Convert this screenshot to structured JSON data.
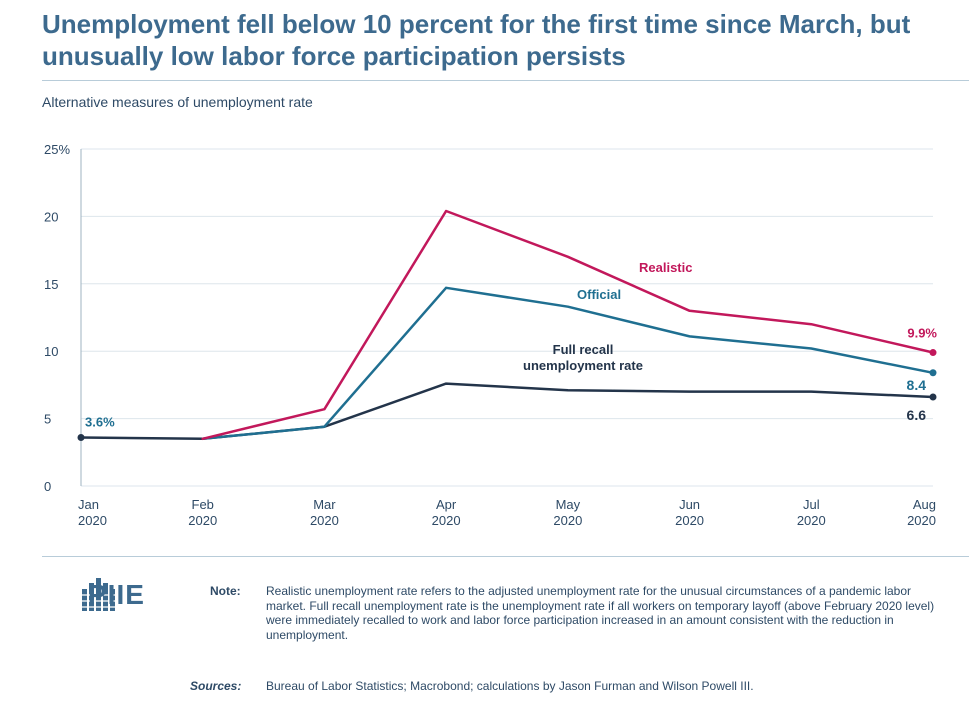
{
  "header": {
    "title": "Unemployment fell below 10 percent for the first time since March, but unusually low labor force participation persists",
    "subtitle": "Alternative measures of unemployment rate"
  },
  "colors": {
    "realistic": "#c2185b",
    "official": "#1f6f91",
    "full_recall": "#23344a",
    "grid": "#dde6ec",
    "axis_text": "#2e4a66"
  },
  "chart_data": {
    "type": "line",
    "title": "Alternative measures of unemployment rate",
    "x": [
      "Jan 2020",
      "Feb 2020",
      "Mar 2020",
      "Apr 2020",
      "May 2020",
      "Jun 2020",
      "Jul 2020",
      "Aug 2020"
    ],
    "x_tick_labels": [
      [
        "Jan",
        "2020"
      ],
      [
        "Feb",
        "2020"
      ],
      [
        "Mar",
        "2020"
      ],
      [
        "Apr",
        "2020"
      ],
      [
        "May",
        "2020"
      ],
      [
        "Jun",
        "2020"
      ],
      [
        "Jul",
        "2020"
      ],
      [
        "Aug",
        "2020"
      ]
    ],
    "ylim": [
      0,
      25
    ],
    "y_ticks": [
      0,
      5,
      10,
      15,
      20,
      25
    ],
    "y_tick_labels": [
      "0",
      "5",
      "10",
      "15",
      "20",
      "25%"
    ],
    "grid": true,
    "series": [
      {
        "name": "Realistic",
        "key": "realistic",
        "values": [
          null,
          3.5,
          5.7,
          20.4,
          17.0,
          13.0,
          12.0,
          9.9
        ],
        "end_label": "9.9%"
      },
      {
        "name": "Official",
        "key": "official",
        "values": [
          null,
          3.5,
          4.4,
          14.7,
          13.3,
          11.1,
          10.2,
          8.4
        ],
        "end_label": "8.4"
      },
      {
        "name": "Full recall unemployment rate",
        "key": "full_recall",
        "label_lines": [
          "Full recall",
          "unemployment rate"
        ],
        "values": [
          3.6,
          3.5,
          4.4,
          7.6,
          7.1,
          7.0,
          7.0,
          6.6
        ],
        "end_label": "6.6"
      }
    ],
    "start_label": "3.6%"
  },
  "footer": {
    "logo_text": "PIIE",
    "note_label": "Note:",
    "note": "Realistic unemployment rate refers to the adjusted unemployment rate for the unusual circumstances of a pandemic labor market. Full recall unemployment rate is the unemployment rate if all workers on temporary layoff (above February 2020 level) were immediately recalled to work and labor force participation increased in an amount consistent with the reduction in unemployment.",
    "sources_label": "Sources:",
    "sources": "Bureau of Labor Statistics; Macrobond; calculations by Jason Furman and Wilson Powell III."
  }
}
